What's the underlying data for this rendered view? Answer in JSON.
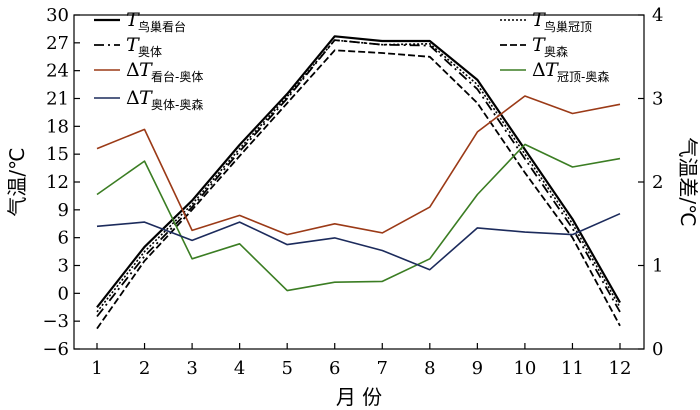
{
  "chart_data": {
    "type": "line",
    "xlabel": "月 份",
    "ylabel_left": "气温/℃",
    "ylabel_right": "气温差/℃",
    "x": [
      1,
      2,
      3,
      4,
      5,
      6,
      7,
      8,
      9,
      10,
      11,
      12
    ],
    "xticks": [
      "1",
      "2",
      "3",
      "4",
      "5",
      "6",
      "7",
      "8",
      "9",
      "10",
      "11",
      "12"
    ],
    "ylim_left": [
      -6,
      30
    ],
    "yticks_left": [
      "-6",
      "-3",
      "0",
      "3",
      "6",
      "9",
      "12",
      "15",
      "18",
      "21",
      "24",
      "27",
      "30"
    ],
    "ylim_right": [
      0,
      4
    ],
    "yticks_right": [
      "0",
      "1",
      "2",
      "3",
      "4"
    ],
    "grid": false,
    "series": [
      {
        "name": "T鸟巢看台",
        "main": "T",
        "sub": "鸟巢看台",
        "prefix": "",
        "axis": "left",
        "color": "#000000",
        "dash": "",
        "width": 2.2,
        "values": [
          -1.5,
          5.0,
          10.0,
          16.0,
          21.5,
          27.7,
          27.2,
          27.2,
          23.0,
          15.5,
          8.0,
          -1.0
        ]
      },
      {
        "name": "T鸟巢冠顶",
        "main": "T",
        "sub": "鸟巢冠顶",
        "prefix": "",
        "axis": "left",
        "color": "#000000",
        "dash": "2,2",
        "width": 1.6,
        "values": [
          -2.0,
          4.5,
          9.6,
          15.6,
          21.2,
          27.3,
          26.8,
          26.9,
          22.5,
          15.0,
          7.5,
          -1.5
        ]
      },
      {
        "name": "T奥体",
        "main": "T",
        "sub": "奥体",
        "prefix": "",
        "axis": "left",
        "color": "#000000",
        "dash": "10,4,2,4",
        "width": 1.8,
        "values": [
          -2.5,
          4.0,
          9.3,
          15.3,
          21.0,
          27.3,
          26.8,
          26.7,
          22.0,
          14.5,
          7.0,
          -2.0
        ]
      },
      {
        "name": "T奥森",
        "main": "T",
        "sub": "奥森",
        "prefix": "",
        "axis": "left",
        "color": "#000000",
        "dash": "7,3",
        "width": 1.8,
        "values": [
          -3.8,
          3.5,
          9.0,
          14.8,
          20.5,
          26.2,
          25.9,
          25.5,
          20.5,
          13.0,
          6.0,
          -3.5
        ]
      },
      {
        "name": "ΔT看台-奥体",
        "main": "T",
        "sub": "看台-奥体",
        "prefix": "Δ",
        "axis": "right",
        "color": "#9b3a17",
        "dash": "",
        "width": 1.6,
        "values": [
          2.4,
          2.63,
          1.42,
          1.6,
          1.37,
          1.5,
          1.39,
          1.7,
          2.6,
          3.03,
          2.82,
          2.93
        ]
      },
      {
        "name": "ΔT冠顶-奥森",
        "main": "T",
        "sub": "冠顶-奥森",
        "prefix": "Δ",
        "axis": "right",
        "color": "#3b7d23",
        "dash": "",
        "width": 1.6,
        "values": [
          1.85,
          2.25,
          1.08,
          1.26,
          0.7,
          0.8,
          0.81,
          1.08,
          1.85,
          2.45,
          2.18,
          2.28
        ]
      },
      {
        "name": "ΔT奥体-奥森",
        "main": "T",
        "sub": "奥体-奥森",
        "prefix": "Δ",
        "axis": "right",
        "color": "#1c2b5c",
        "dash": "",
        "width": 1.6,
        "values": [
          1.47,
          1.52,
          1.3,
          1.52,
          1.25,
          1.33,
          1.18,
          0.95,
          1.45,
          1.4,
          1.37,
          1.62
        ]
      }
    ]
  }
}
